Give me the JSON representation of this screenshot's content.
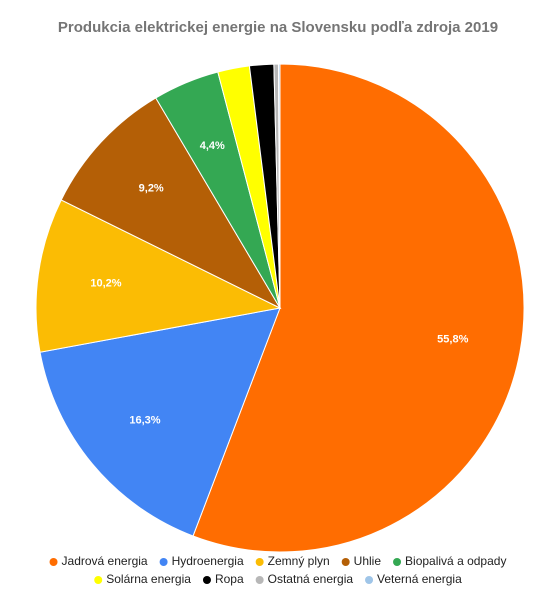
{
  "chart_data": {
    "type": "pie",
    "title": "Produkcia elektrickej energie na Slovensku podľa zdroja 2019",
    "categories": [
      "Jadrová energia",
      "Hydroenergia",
      "Zemný plyn",
      "Uhlie",
      "Biopalivá a odpady",
      "Solárna energia",
      "Ropa",
      "Ostatná energia",
      "Veterná energia"
    ],
    "values": [
      55.8,
      16.3,
      10.2,
      9.2,
      4.4,
      2.1,
      1.6,
      0.3,
      0.1
    ],
    "value_labels": [
      "55,8%",
      "16,3%",
      "10,2%",
      "9,2%",
      "4,4%",
      null,
      null,
      null,
      null
    ],
    "colors": [
      "#ff6d01",
      "#4285f4",
      "#fbbc04",
      "#b45f06",
      "#34a853",
      "#ffff00",
      "#000000",
      "#b7b7b7",
      "#9fc5e8"
    ],
    "legend": "bottom"
  }
}
